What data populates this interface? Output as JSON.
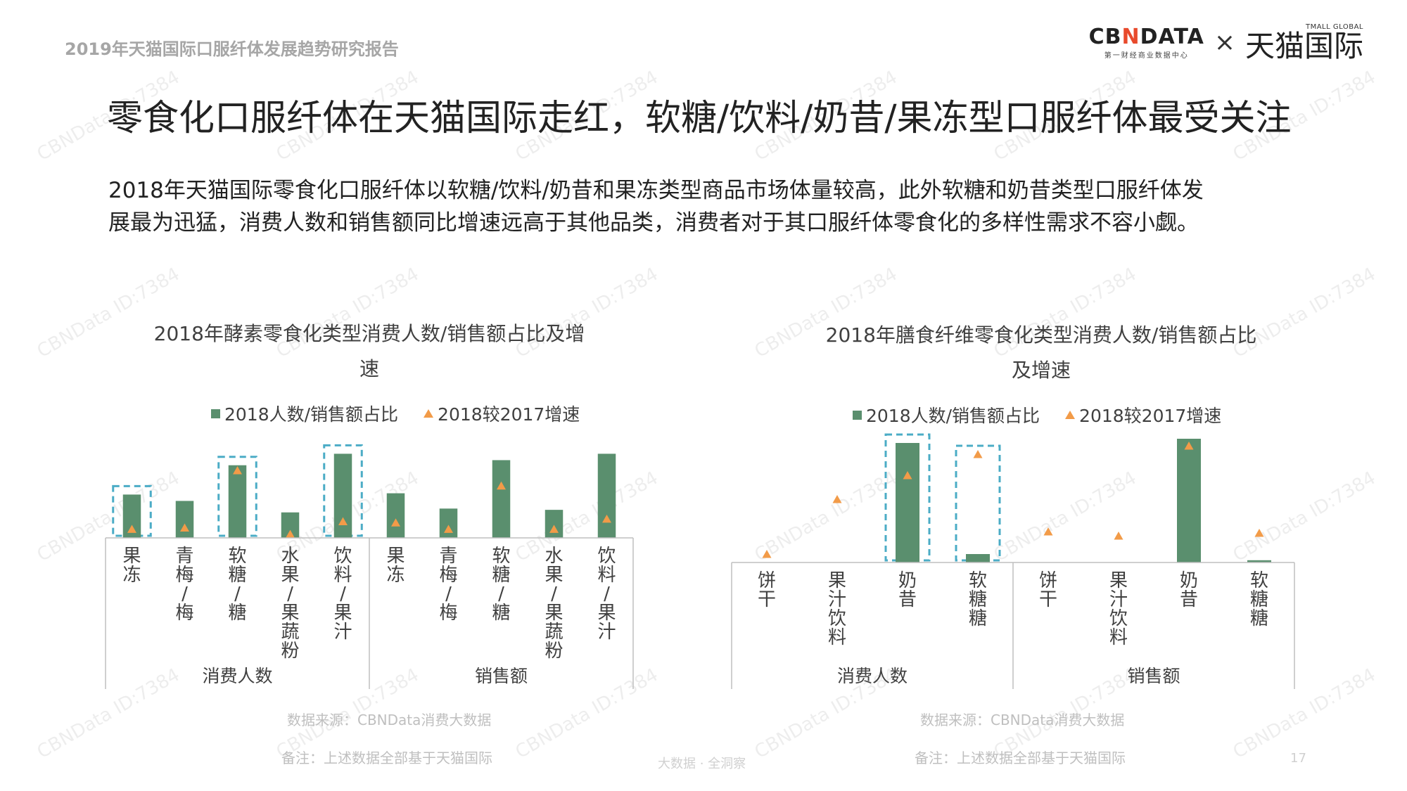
{
  "header": {
    "report_title": "2019年天猫国际口服纤体发展趋势研究报告",
    "logo_cbn": "CBNDATA",
    "logo_cbn_sub": "第一财经商业数据中心",
    "logo_x": "×",
    "logo_tmall_small": "TMALL GLOBAL",
    "logo_tmall": "天猫国际"
  },
  "title": "零食化口服纤体在天猫国际走红，软糖/饮料/奶昔/果冻型口服纤体最受关注",
  "description_line1": "2018年天猫国际零食化口服纤体以软糖/饮料/奶昔和果冻类型商品市场体量较高，此外软糖和奶昔类型口服纤体发",
  "description_line2": "展最为迅猛，消费人数和销售额同比增速远高于其他品类，消费者对于其口服纤体零食化的多样性需求不容小觑。",
  "watermark": "CBNData ID:7384",
  "colors": {
    "bar": "#5a8f6e",
    "marker": "#f29b48",
    "highlight_box": "#4bacc6",
    "axis": "#bfbfbf"
  },
  "chart_data": [
    {
      "type": "bar",
      "title_line1": "2018年酵素零食化类型消费人数/销售额占比及增",
      "title_line2": "速",
      "legend_bar": "2018人数/销售额占比",
      "legend_marker": "2018较2017增速",
      "groups": [
        "消费人数",
        "销售额"
      ],
      "categories": [
        "果冻",
        "青梅/梅",
        "软糖/糖",
        "水果/果蔬粉",
        "饮料/果汁",
        "果冻",
        "青梅/梅",
        "软糖/糖",
        "水果/果蔬粉",
        "饮料/果汁"
      ],
      "category_groups": [
        0,
        0,
        0,
        0,
        0,
        1,
        1,
        1,
        1,
        1
      ],
      "series": [
        {
          "name": "2018人数/销售额占比",
          "kind": "bar",
          "values": [
            17,
            14.5,
            28.5,
            10,
            33,
            17.5,
            11.5,
            30.5,
            11,
            33
          ]
        },
        {
          "name": "2018较2017增速",
          "kind": "marker",
          "values": [
            3.5,
            4,
            26.5,
            1.5,
            6.5,
            6,
            3.5,
            20.5,
            3.5,
            7.5
          ]
        }
      ],
      "highlighted": [
        0,
        2,
        4
      ],
      "ylim": [
        0,
        40
      ]
    },
    {
      "type": "bar",
      "title_line1": "2018年膳食纤维零食化类型消费人数/销售额占比",
      "title_line2": "及增速",
      "legend_bar": "2018人数/销售额占比",
      "legend_marker": "2018较2017增速",
      "groups": [
        "消费人数",
        "销售额"
      ],
      "categories": [
        "饼干",
        "果汁饮料",
        "奶昔",
        "软糖糖",
        "饼干",
        "果汁饮料",
        "奶昔",
        "软糖糖"
      ],
      "category_groups": [
        0,
        0,
        0,
        0,
        1,
        1,
        1,
        1
      ],
      "series": [
        {
          "name": "2018人数/销售额占比",
          "kind": "bar",
          "values": [
            0,
            0,
            42.5,
            3,
            0,
            0,
            44,
            0.8
          ]
        },
        {
          "name": "2018较2017增速",
          "kind": "marker",
          "values": [
            3,
            22.5,
            31,
            38.5,
            11,
            9.5,
            41.5,
            10.5
          ]
        }
      ],
      "highlighted": [
        2,
        3
      ],
      "ylim": [
        0,
        45
      ]
    }
  ],
  "notes": {
    "left_source": "数据来源：CBNData消费大数据",
    "left_remark": "备注：上述数据全部基于天猫国际",
    "right_source": "数据来源：CBNData消费大数据",
    "right_remark": "备注：上述数据全部基于天猫国际"
  },
  "footer": {
    "slogan": "大数据 · 全洞察",
    "page_number": "17"
  }
}
